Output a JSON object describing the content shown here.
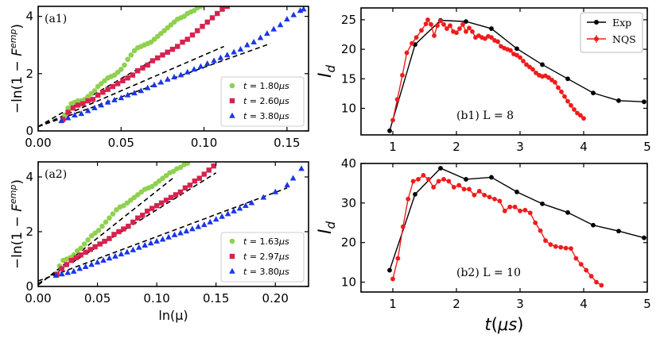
{
  "chart_data": [
    {
      "id": "a1",
      "type": "scatter",
      "panel_label": "(a1)",
      "xlabel": "",
      "ylabel": "−ln(1 − F^emp)",
      "ylabel_main": "−ln(1 − ",
      "ylabel_F": "F",
      "ylabel_sup": "emp",
      "ylabel_close": ")",
      "xlim": [
        0,
        0.163
      ],
      "ylim": [
        0,
        4.35
      ],
      "xticks": [
        0,
        0.05,
        0.1,
        0.15
      ],
      "xtick_labels": [
        "0.00",
        "0.05",
        "0.10",
        "0.15"
      ],
      "yticks": [
        0,
        2,
        4
      ],
      "ytick_labels": [
        "0",
        "2",
        "4"
      ],
      "legend_position": "bottom-right",
      "series": [
        {
          "name": "t = 1.80μs",
          "label_t": "t",
          "label_eq": " = 1.80",
          "label_unit": "μs",
          "color": "#8fd14f",
          "marker": "circle",
          "x": [
            0.016,
            0.018,
            0.02,
            0.022,
            0.024,
            0.026,
            0.028,
            0.03,
            0.032,
            0.034,
            0.036,
            0.038,
            0.04,
            0.042,
            0.044,
            0.046,
            0.048,
            0.05,
            0.052,
            0.054,
            0.056,
            0.058,
            0.06,
            0.062,
            0.064,
            0.066,
            0.068,
            0.07,
            0.072,
            0.074,
            0.076,
            0.078,
            0.08,
            0.082,
            0.084,
            0.086,
            0.088,
            0.09,
            0.092,
            0.094,
            0.096,
            0.098
          ],
          "y": [
            0.55,
            0.8,
            0.95,
            1.0,
            1.05,
            1.05,
            1.1,
            1.2,
            1.3,
            1.4,
            1.55,
            1.65,
            1.75,
            1.85,
            1.9,
            1.95,
            2.05,
            2.15,
            2.3,
            2.5,
            2.65,
            2.8,
            2.9,
            2.95,
            3.0,
            3.05,
            3.1,
            3.2,
            3.3,
            3.4,
            3.5,
            3.6,
            3.7,
            3.8,
            3.9,
            3.95,
            4.0,
            4.1,
            4.15,
            4.2,
            4.3,
            4.35
          ]
        },
        {
          "name": "t = 2.60μs",
          "label_t": "t",
          "label_eq": " = 2.60",
          "label_unit": "μs",
          "color": "#d6224f",
          "marker": "square",
          "x": [
            0.015,
            0.018,
            0.021,
            0.024,
            0.027,
            0.03,
            0.033,
            0.036,
            0.039,
            0.042,
            0.045,
            0.048,
            0.051,
            0.054,
            0.057,
            0.06,
            0.063,
            0.066,
            0.069,
            0.072,
            0.075,
            0.078,
            0.081,
            0.084,
            0.087,
            0.09,
            0.093,
            0.096,
            0.099,
            0.102,
            0.105,
            0.108,
            0.111,
            0.114
          ],
          "y": [
            0.4,
            0.65,
            0.8,
            0.9,
            0.95,
            1.05,
            1.1,
            1.25,
            1.35,
            1.45,
            1.55,
            1.65,
            1.75,
            1.85,
            1.95,
            2.1,
            2.2,
            2.3,
            2.45,
            2.55,
            2.65,
            2.75,
            2.85,
            2.95,
            3.1,
            3.2,
            3.35,
            3.5,
            3.65,
            3.8,
            3.95,
            4.1,
            4.25,
            4.35
          ]
        },
        {
          "name": "t = 3.80μs",
          "label_t": "t",
          "label_eq": " = 3.80",
          "label_unit": "μs",
          "color": "#1a36e8",
          "marker": "triangle",
          "x": [
            0.014,
            0.018,
            0.022,
            0.026,
            0.03,
            0.034,
            0.038,
            0.042,
            0.046,
            0.05,
            0.054,
            0.058,
            0.062,
            0.066,
            0.07,
            0.074,
            0.078,
            0.082,
            0.086,
            0.09,
            0.094,
            0.098,
            0.102,
            0.106,
            0.11,
            0.114,
            0.118,
            0.122,
            0.126,
            0.13,
            0.134,
            0.138,
            0.142,
            0.146,
            0.15,
            0.154,
            0.158,
            0.16
          ],
          "y": [
            0.35,
            0.45,
            0.55,
            0.6,
            0.7,
            0.8,
            0.9,
            1.0,
            1.08,
            1.15,
            1.25,
            1.32,
            1.4,
            1.5,
            1.6,
            1.7,
            1.8,
            1.88,
            1.95,
            2.05,
            2.15,
            2.25,
            2.35,
            2.45,
            2.55,
            2.65,
            2.75,
            2.85,
            3.0,
            3.1,
            3.25,
            3.4,
            3.55,
            3.7,
            3.9,
            4.05,
            4.2,
            4.25
          ]
        }
      ],
      "fit_lines": [
        {
          "x": [
            0,
            0.085
          ],
          "y": [
            0.15,
            3.0
          ]
        },
        {
          "x": [
            0,
            0.112
          ],
          "y": [
            0.15,
            2.95
          ]
        },
        {
          "x": [
            0,
            0.14
          ],
          "y": [
            0.15,
            3.05
          ]
        }
      ]
    },
    {
      "id": "a2",
      "type": "scatter",
      "panel_label": "(a2)",
      "xlabel": "ln(μ)",
      "ylabel": "−ln(1 − F^emp)",
      "ylabel_main": "−ln(1 − ",
      "ylabel_F": "F",
      "ylabel_sup": "emp",
      "ylabel_close": ")",
      "xlim": [
        0,
        0.228
      ],
      "ylim": [
        0,
        4.55
      ],
      "xticks": [
        0,
        0.05,
        0.1,
        0.15,
        0.2
      ],
      "xtick_labels": [
        "0.00",
        "0.05",
        "0.10",
        "0.15",
        "0.20"
      ],
      "yticks": [
        0,
        2,
        4
      ],
      "ytick_labels": [
        "0",
        "2",
        "4"
      ],
      "legend_position": "bottom-right",
      "series": [
        {
          "name": "t = 1.63μs",
          "label_t": "t",
          "label_eq": " = 1.63",
          "label_unit": "μs",
          "color": "#8fd14f",
          "marker": "circle",
          "x": [
            0.018,
            0.021,
            0.024,
            0.027,
            0.03,
            0.033,
            0.036,
            0.039,
            0.042,
            0.045,
            0.048,
            0.051,
            0.054,
            0.057,
            0.06,
            0.063,
            0.066,
            0.069,
            0.072,
            0.075,
            0.078,
            0.081,
            0.084,
            0.087,
            0.09,
            0.093,
            0.096,
            0.099,
            0.102,
            0.105,
            0.108,
            0.111,
            0.114,
            0.117,
            0.12,
            0.123,
            0.126
          ],
          "y": [
            0.75,
            0.95,
            1.0,
            1.05,
            1.15,
            1.3,
            1.4,
            1.55,
            1.7,
            1.85,
            1.95,
            2.05,
            2.2,
            2.35,
            2.5,
            2.65,
            2.8,
            2.9,
            2.95,
            3.05,
            3.15,
            3.25,
            3.35,
            3.45,
            3.55,
            3.6,
            3.65,
            3.75,
            3.85,
            3.95,
            4.05,
            4.15,
            4.2,
            4.3,
            4.35,
            4.45,
            4.5
          ]
        },
        {
          "name": "t = 2.97μs",
          "label_t": "t",
          "label_eq": " = 2.97",
          "label_unit": "μs",
          "color": "#d6224f",
          "marker": "square",
          "x": [
            0.016,
            0.02,
            0.024,
            0.028,
            0.032,
            0.036,
            0.04,
            0.044,
            0.048,
            0.052,
            0.056,
            0.06,
            0.064,
            0.068,
            0.072,
            0.076,
            0.08,
            0.084,
            0.088,
            0.092,
            0.096,
            0.1,
            0.104,
            0.108,
            0.112,
            0.116,
            0.12,
            0.124,
            0.128,
            0.132,
            0.136,
            0.14,
            0.144,
            0.148
          ],
          "y": [
            0.45,
            0.65,
            0.8,
            0.95,
            1.05,
            1.15,
            1.25,
            1.35,
            1.45,
            1.55,
            1.65,
            1.75,
            1.9,
            2.0,
            2.1,
            2.2,
            2.35,
            2.5,
            2.6,
            2.75,
            2.85,
            2.95,
            3.05,
            3.15,
            3.25,
            3.35,
            3.45,
            3.6,
            3.7,
            3.85,
            3.95,
            4.1,
            4.25,
            4.4
          ]
        },
        {
          "name": "t = 3.80μs",
          "label_t": "t",
          "label_eq": " = 3.80",
          "label_unit": "μs",
          "color": "#1a36e8",
          "marker": "triangle",
          "x": [
            0.015,
            0.02,
            0.025,
            0.03,
            0.035,
            0.04,
            0.045,
            0.05,
            0.055,
            0.06,
            0.065,
            0.07,
            0.075,
            0.08,
            0.085,
            0.09,
            0.095,
            0.1,
            0.105,
            0.11,
            0.115,
            0.12,
            0.125,
            0.13,
            0.135,
            0.14,
            0.145,
            0.15,
            0.155,
            0.16,
            0.165,
            0.17,
            0.175,
            0.18,
            0.19,
            0.2,
            0.21,
            0.215,
            0.222
          ],
          "y": [
            0.4,
            0.45,
            0.5,
            0.55,
            0.65,
            0.72,
            0.8,
            0.88,
            0.95,
            1.03,
            1.1,
            1.18,
            1.25,
            1.33,
            1.42,
            1.5,
            1.58,
            1.65,
            1.72,
            1.8,
            1.88,
            1.95,
            2.02,
            2.1,
            2.18,
            2.25,
            2.35,
            2.45,
            2.55,
            2.65,
            2.75,
            2.85,
            2.95,
            3.05,
            3.25,
            3.45,
            3.7,
            3.95,
            4.3
          ]
        }
      ],
      "fit_lines": [
        {
          "x": [
            0,
            0.115
          ],
          "y": [
            0.05,
            4.0
          ]
        },
        {
          "x": [
            0,
            0.15
          ],
          "y": [
            0.1,
            4.15
          ]
        },
        {
          "x": [
            0,
            0.21
          ],
          "y": [
            0.2,
            3.6
          ]
        }
      ]
    },
    {
      "id": "b1",
      "type": "line",
      "annotation": "(b1) L = 8",
      "xlabel": "",
      "ylabel": "I_d",
      "ylabel_main": "I",
      "ylabel_sub": "d",
      "xlim": [
        0.5,
        5.0
      ],
      "ylim": [
        5.5,
        27.0
      ],
      "xticks": [
        1,
        2,
        3,
        4,
        5
      ],
      "xtick_labels": [
        "1",
        "2",
        "3",
        "4",
        "5"
      ],
      "yticks": [
        10,
        15,
        20,
        25
      ],
      "ytick_labels": [
        "10",
        "15",
        "20",
        "25"
      ],
      "legend_position": "top-right",
      "series": [
        {
          "name": "Exp",
          "color": "#000000",
          "marker": "circle",
          "x": [
            0.95,
            1.35,
            1.75,
            2.15,
            2.55,
            2.95,
            3.35,
            3.75,
            4.15,
            4.55,
            4.95
          ],
          "y": [
            6.2,
            20.8,
            24.9,
            24.7,
            23.5,
            20.1,
            17.4,
            15.0,
            12.6,
            11.3,
            11.1
          ]
        },
        {
          "name": "NQS",
          "color": "#ee1c1c",
          "marker": "circle",
          "x": [
            1.0,
            1.07,
            1.15,
            1.22,
            1.3,
            1.37,
            1.45,
            1.52,
            1.55,
            1.6,
            1.65,
            1.7,
            1.75,
            1.8,
            1.85,
            1.9,
            1.95,
            2.0,
            2.05,
            2.1,
            2.15,
            2.2,
            2.25,
            2.3,
            2.35,
            2.4,
            2.45,
            2.5,
            2.55,
            2.6,
            2.65,
            2.7,
            2.75,
            2.8,
            2.85,
            2.9,
            2.95,
            3.0,
            3.05,
            3.1,
            3.15,
            3.2,
            3.25,
            3.3,
            3.35,
            3.4,
            3.45,
            3.5,
            3.55,
            3.6,
            3.65,
            3.7,
            3.75,
            3.8,
            3.85,
            3.9,
            3.95,
            4.0
          ],
          "y": [
            8.0,
            11.5,
            15.6,
            19.4,
            21.0,
            22.0,
            23.2,
            24.3,
            25.0,
            24.2,
            22.3,
            24.0,
            24.8,
            24.2,
            23.5,
            24.0,
            23.0,
            22.8,
            23.5,
            24.2,
            23.0,
            23.6,
            23.0,
            22.0,
            22.3,
            22.0,
            21.8,
            22.2,
            22.0,
            21.5,
            21.3,
            20.5,
            20.2,
            20.0,
            19.8,
            19.2,
            19.0,
            18.6,
            18.0,
            17.4,
            17.0,
            16.6,
            16.0,
            15.6,
            15.4,
            15.5,
            15.2,
            14.8,
            14.4,
            13.5,
            12.8,
            12.0,
            11.2,
            10.5,
            9.8,
            9.2,
            8.8,
            8.3
          ]
        }
      ]
    },
    {
      "id": "b2",
      "type": "line",
      "annotation": "(b2) L = 10",
      "xlabel": "t(μs)",
      "xlabel_t": "t",
      "xlabel_open": "(",
      "xlabel_unit": "μs",
      "xlabel_close": ")",
      "ylabel": "I_d",
      "ylabel_main": "I",
      "ylabel_sub": "d",
      "xlim": [
        0.5,
        5.0
      ],
      "ylim": [
        7.5,
        40.0
      ],
      "xticks": [
        1,
        2,
        3,
        4,
        5
      ],
      "xtick_labels": [
        "1",
        "2",
        "3",
        "4",
        "5"
      ],
      "yticks": [
        10,
        20,
        30,
        40
      ],
      "ytick_labels": [
        "10",
        "20",
        "30",
        "40"
      ],
      "series": [
        {
          "name": "Exp",
          "color": "#000000",
          "marker": "circle",
          "x": [
            0.95,
            1.35,
            1.75,
            2.15,
            2.55,
            2.95,
            3.35,
            3.75,
            4.15,
            4.55,
            4.95
          ],
          "y": [
            13.0,
            32.2,
            38.8,
            36.0,
            36.5,
            32.8,
            29.8,
            27.6,
            24.4,
            22.9,
            21.2
          ]
        },
        {
          "name": "NQS",
          "color": "#ee1c1c",
          "marker": "circle",
          "x": [
            1.0,
            1.08,
            1.16,
            1.24,
            1.32,
            1.4,
            1.48,
            1.56,
            1.64,
            1.72,
            1.8,
            1.88,
            1.96,
            2.04,
            2.12,
            2.2,
            2.28,
            2.36,
            2.44,
            2.52,
            2.6,
            2.68,
            2.76,
            2.84,
            2.92,
            3.0,
            3.08,
            3.16,
            3.24,
            3.32,
            3.4,
            3.48,
            3.56,
            3.64,
            3.72,
            3.8,
            3.88,
            3.96,
            4.04,
            4.12,
            4.2,
            4.28
          ],
          "y": [
            10.8,
            16.0,
            24.0,
            31.0,
            35.5,
            36.0,
            37.0,
            36.0,
            34.0,
            35.5,
            36.0,
            35.5,
            34.0,
            34.5,
            33.5,
            33.5,
            32.0,
            33.0,
            32.0,
            31.5,
            31.0,
            30.5,
            28.0,
            29.0,
            29.0,
            28.0,
            28.2,
            27.5,
            25.0,
            23.0,
            20.5,
            19.5,
            19.0,
            18.8,
            18.6,
            18.5,
            16.0,
            14.5,
            13.0,
            11.5,
            10.0,
            9.2
          ]
        }
      ]
    }
  ]
}
